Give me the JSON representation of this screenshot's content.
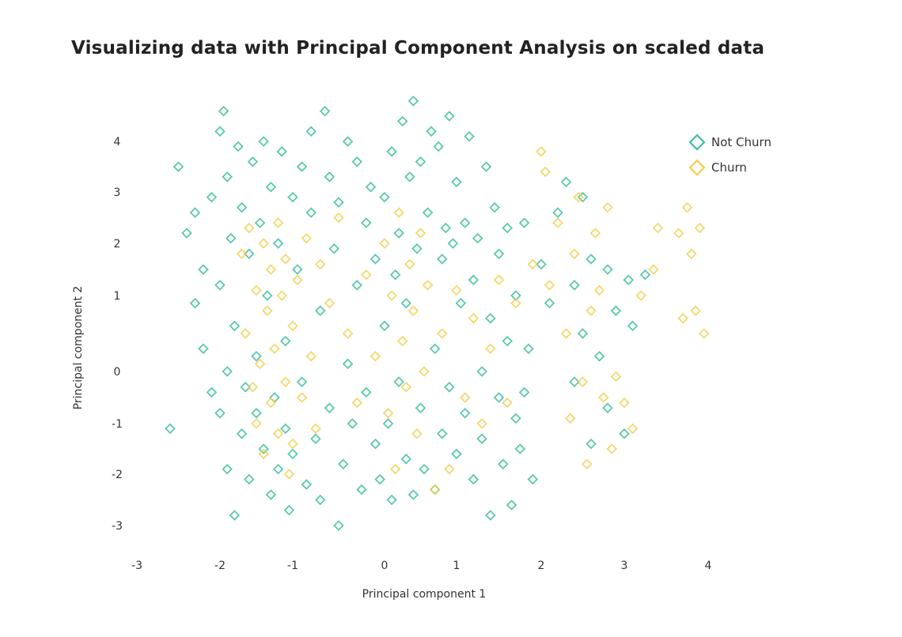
{
  "chart_data": {
    "type": "scatter",
    "title": "Visualizing data with Principal Component Analysis on scaled data",
    "xlabel": "Principal component 1",
    "ylabel": "Principal component 2",
    "xticks": [
      "-3",
      "-2",
      "-1",
      "0",
      "1",
      "2",
      "3",
      "4"
    ],
    "yticks": [
      "4",
      "3",
      "2",
      "1",
      "0",
      "-1",
      "-2",
      "-3"
    ],
    "xlim": [
      -3,
      4
    ],
    "ylim": [
      -3.3,
      4.9
    ],
    "grid": false,
    "legend_position": "top-right",
    "marker": "hollow-diamond",
    "series": [
      {
        "name": "Not Churn",
        "color": "#3dbf9f",
        "points": [
          [
            -2.6,
            -1.1
          ],
          [
            -2.5,
            3.5
          ],
          [
            -2.4,
            2.2
          ],
          [
            -2.3,
            2.6
          ],
          [
            -2.3,
            0.9
          ],
          [
            -2.2,
            1.5
          ],
          [
            -2.2,
            0.3
          ],
          [
            -2.1,
            -0.4
          ],
          [
            -2.1,
            2.9
          ],
          [
            -2.0,
            4.2
          ],
          [
            -2.0,
            -0.8
          ],
          [
            -2.0,
            1.2
          ],
          [
            -1.95,
            4.6
          ],
          [
            -1.9,
            -1.9
          ],
          [
            -1.9,
            0.0
          ],
          [
            -1.9,
            3.3
          ],
          [
            -1.85,
            2.1
          ],
          [
            -1.8,
            -2.8
          ],
          [
            -1.8,
            0.6
          ],
          [
            -1.75,
            3.9
          ],
          [
            -1.7,
            -1.2
          ],
          [
            -1.7,
            2.7
          ],
          [
            -1.65,
            -0.3
          ],
          [
            -1.6,
            1.8
          ],
          [
            -1.6,
            -2.1
          ],
          [
            -1.55,
            3.6
          ],
          [
            -1.5,
            0.2
          ],
          [
            -1.5,
            -0.8
          ],
          [
            -1.45,
            2.4
          ],
          [
            -1.4,
            -1.5
          ],
          [
            -1.4,
            4.0
          ],
          [
            -1.35,
            1.0
          ],
          [
            -1.3,
            -2.4
          ],
          [
            -1.3,
            3.1
          ],
          [
            -1.25,
            -0.5
          ],
          [
            -1.2,
            2.0
          ],
          [
            -1.2,
            -1.9
          ],
          [
            -1.15,
            3.8
          ],
          [
            -1.1,
            -1.1
          ],
          [
            -1.1,
            0.4
          ],
          [
            -1.05,
            -2.7
          ],
          [
            -1.0,
            2.9
          ],
          [
            -1.0,
            -1.6
          ],
          [
            -0.95,
            1.5
          ],
          [
            -0.9,
            3.5
          ],
          [
            -0.9,
            -0.2
          ],
          [
            -0.85,
            -2.2
          ],
          [
            -0.8,
            4.2
          ],
          [
            -0.8,
            2.6
          ],
          [
            -0.75,
            -1.3
          ],
          [
            -0.7,
            0.8
          ],
          [
            -0.7,
            -2.5
          ],
          [
            -0.65,
            4.6
          ],
          [
            -0.6,
            3.3
          ],
          [
            -0.6,
            -0.7
          ],
          [
            -0.55,
            1.9
          ],
          [
            -0.5,
            -3.0
          ],
          [
            -0.5,
            2.8
          ],
          [
            -0.45,
            -1.8
          ],
          [
            -0.4,
            4.0
          ],
          [
            -0.4,
            0.1
          ],
          [
            -0.35,
            -1.0
          ],
          [
            -0.3,
            3.6
          ],
          [
            -0.3,
            1.2
          ],
          [
            -0.25,
            -2.3
          ],
          [
            -0.2,
            2.4
          ],
          [
            -0.2,
            -0.4
          ],
          [
            -0.15,
            3.1
          ],
          [
            -0.1,
            -1.4
          ],
          [
            -0.1,
            1.7
          ],
          [
            -0.05,
            -2.1
          ],
          [
            0.0,
            0.6
          ],
          [
            0.0,
            2.9
          ],
          [
            0.05,
            -1.0
          ],
          [
            0.1,
            -2.5
          ],
          [
            0.1,
            3.8
          ],
          [
            0.15,
            1.4
          ],
          [
            0.2,
            -0.2
          ],
          [
            0.2,
            2.2
          ],
          [
            0.25,
            4.4
          ],
          [
            0.3,
            -1.7
          ],
          [
            0.3,
            0.9
          ],
          [
            0.35,
            3.3
          ],
          [
            0.4,
            -2.4
          ],
          [
            0.4,
            4.8
          ],
          [
            0.45,
            1.9
          ],
          [
            0.5,
            -0.7
          ],
          [
            0.5,
            3.6
          ],
          [
            0.55,
            -1.9
          ],
          [
            0.6,
            2.6
          ],
          [
            0.65,
            4.2
          ],
          [
            0.7,
            -2.3
          ],
          [
            0.7,
            0.3
          ],
          [
            0.75,
            3.9
          ],
          [
            0.8,
            1.7
          ],
          [
            0.8,
            -1.2
          ],
          [
            0.85,
            2.3
          ],
          [
            0.9,
            4.5
          ],
          [
            0.9,
            -0.3
          ],
          [
            0.95,
            2.0
          ],
          [
            1.0,
            -1.6
          ],
          [
            1.0,
            3.2
          ],
          [
            1.05,
            0.9
          ],
          [
            1.1,
            2.4
          ],
          [
            1.1,
            -0.8
          ],
          [
            1.15,
            4.1
          ],
          [
            1.2,
            -2.1
          ],
          [
            1.2,
            1.3
          ],
          [
            1.25,
            2.1
          ],
          [
            1.3,
            0.0
          ],
          [
            1.3,
            -1.3
          ],
          [
            1.35,
            3.5
          ],
          [
            1.4,
            0.7
          ],
          [
            1.4,
            -2.8
          ],
          [
            1.45,
            2.7
          ],
          [
            1.5,
            -0.5
          ],
          [
            1.5,
            1.8
          ],
          [
            1.55,
            -1.8
          ],
          [
            1.6,
            0.4
          ],
          [
            1.6,
            2.3
          ],
          [
            1.65,
            -2.6
          ],
          [
            1.7,
            -0.9
          ],
          [
            1.7,
            1.0
          ],
          [
            1.75,
            -1.5
          ],
          [
            1.8,
            2.4
          ],
          [
            1.8,
            -0.4
          ],
          [
            1.85,
            0.3
          ],
          [
            1.9,
            -2.1
          ],
          [
            2.0,
            1.6
          ],
          [
            2.1,
            0.9
          ],
          [
            2.2,
            2.6
          ],
          [
            2.3,
            3.2
          ],
          [
            2.4,
            1.2
          ],
          [
            2.4,
            -0.2
          ],
          [
            2.5,
            0.5
          ],
          [
            2.5,
            2.9
          ],
          [
            2.6,
            -1.4
          ],
          [
            2.6,
            1.7
          ],
          [
            2.7,
            0.2
          ],
          [
            2.8,
            -0.7
          ],
          [
            2.8,
            1.5
          ],
          [
            2.9,
            0.8
          ],
          [
            3.0,
            -1.2
          ],
          [
            3.05,
            1.3
          ],
          [
            3.1,
            0.6
          ],
          [
            3.25,
            1.4
          ]
        ]
      },
      {
        "name": "Churn",
        "color": "#f2cd4a",
        "points": [
          [
            -1.7,
            1.8
          ],
          [
            -1.65,
            0.5
          ],
          [
            -1.6,
            2.3
          ],
          [
            -1.55,
            -0.3
          ],
          [
            -1.5,
            1.1
          ],
          [
            -1.5,
            -1.0
          ],
          [
            -1.45,
            0.1
          ],
          [
            -1.4,
            2.0
          ],
          [
            -1.4,
            -1.6
          ],
          [
            -1.35,
            0.8
          ],
          [
            -1.3,
            1.5
          ],
          [
            -1.3,
            -0.6
          ],
          [
            -1.25,
            0.3
          ],
          [
            -1.2,
            2.4
          ],
          [
            -1.2,
            -1.2
          ],
          [
            -1.15,
            1.0
          ],
          [
            -1.1,
            -0.2
          ],
          [
            -1.1,
            1.7
          ],
          [
            -1.05,
            -2.0
          ],
          [
            -1.0,
            0.6
          ],
          [
            -1.0,
            -1.4
          ],
          [
            -0.95,
            1.3
          ],
          [
            -0.9,
            -0.5
          ],
          [
            -0.85,
            2.1
          ],
          [
            -0.8,
            0.2
          ],
          [
            -0.75,
            -1.1
          ],
          [
            -0.7,
            1.6
          ],
          [
            -0.6,
            0.9
          ],
          [
            -0.5,
            2.5
          ],
          [
            -0.4,
            0.5
          ],
          [
            -0.3,
            -0.6
          ],
          [
            -0.2,
            1.4
          ],
          [
            -0.1,
            0.2
          ],
          [
            0.0,
            2.0
          ],
          [
            0.05,
            -0.8
          ],
          [
            0.1,
            1.0
          ],
          [
            0.15,
            -1.9
          ],
          [
            0.2,
            2.6
          ],
          [
            0.25,
            0.4
          ],
          [
            0.3,
            -0.3
          ],
          [
            0.35,
            1.6
          ],
          [
            0.4,
            0.8
          ],
          [
            0.45,
            -1.2
          ],
          [
            0.5,
            2.2
          ],
          [
            0.55,
            0.0
          ],
          [
            0.6,
            1.2
          ],
          [
            0.7,
            -2.3
          ],
          [
            0.8,
            0.5
          ],
          [
            0.9,
            -1.9
          ],
          [
            1.0,
            1.1
          ],
          [
            1.1,
            -0.5
          ],
          [
            1.2,
            0.7
          ],
          [
            1.3,
            -1.0
          ],
          [
            1.4,
            0.3
          ],
          [
            1.5,
            1.3
          ],
          [
            1.6,
            -0.6
          ],
          [
            1.7,
            0.9
          ],
          [
            1.9,
            1.6
          ],
          [
            2.0,
            3.8
          ],
          [
            2.05,
            3.4
          ],
          [
            2.1,
            1.2
          ],
          [
            2.2,
            2.4
          ],
          [
            2.3,
            0.5
          ],
          [
            2.35,
            -0.9
          ],
          [
            2.4,
            1.8
          ],
          [
            2.45,
            2.9
          ],
          [
            2.5,
            -0.2
          ],
          [
            2.55,
            -1.8
          ],
          [
            2.6,
            0.8
          ],
          [
            2.65,
            2.2
          ],
          [
            2.7,
            1.1
          ],
          [
            2.75,
            -0.5
          ],
          [
            2.8,
            2.7
          ],
          [
            2.85,
            -1.5
          ],
          [
            2.9,
            -0.1
          ],
          [
            3.0,
            -0.6
          ],
          [
            3.1,
            -1.1
          ],
          [
            3.2,
            1.0
          ],
          [
            3.35,
            1.5
          ],
          [
            3.4,
            2.3
          ],
          [
            3.65,
            2.2
          ],
          [
            3.7,
            0.7
          ],
          [
            3.75,
            2.7
          ],
          [
            3.8,
            1.8
          ],
          [
            3.85,
            0.8
          ],
          [
            3.9,
            2.3
          ],
          [
            3.95,
            0.5
          ]
        ]
      }
    ]
  }
}
